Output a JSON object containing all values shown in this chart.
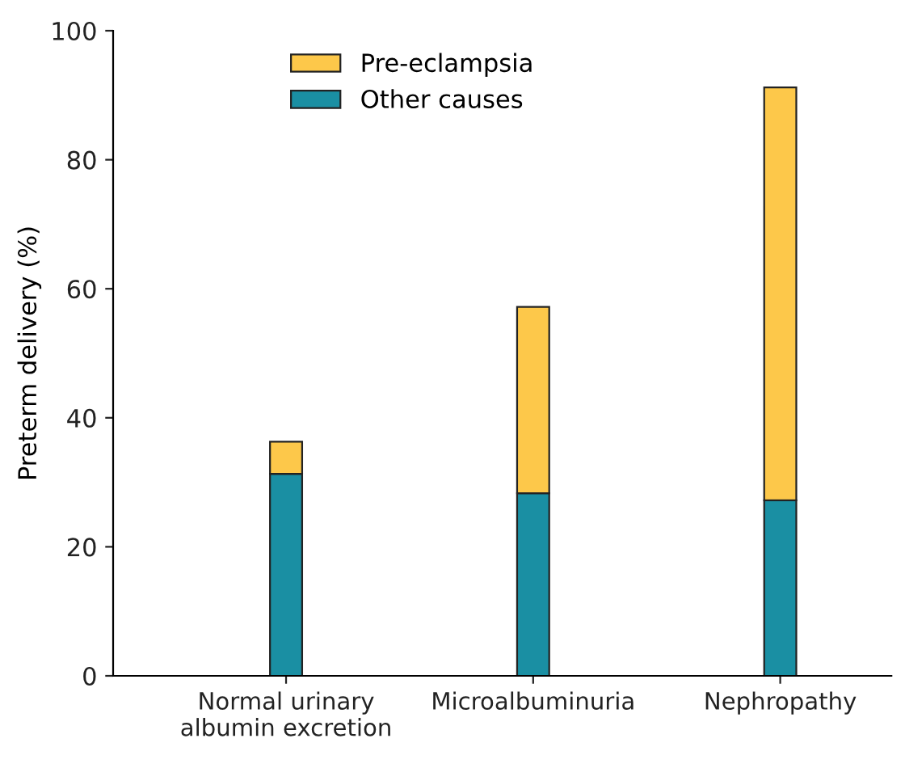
{
  "chart_data": {
    "type": "bar",
    "stacked": true,
    "ylabel": "Preterm delivery (%)",
    "categories": [
      "Normal urinary\nalbumin excretion",
      "Microalbuminuria",
      "Nephropathy"
    ],
    "series": [
      {
        "name": "Other causes",
        "color": "#1a8fa3",
        "values": [
          31.3,
          28.3,
          27.2
        ]
      },
      {
        "name": "Pre-eclampsia",
        "color": "#fdc84a",
        "values": [
          5.0,
          28.9,
          64.0
        ]
      }
    ],
    "ylim": [
      0,
      100
    ],
    "yticks": [
      0,
      20,
      40,
      60,
      80,
      100
    ],
    "grid": false,
    "legend": "top left"
  }
}
